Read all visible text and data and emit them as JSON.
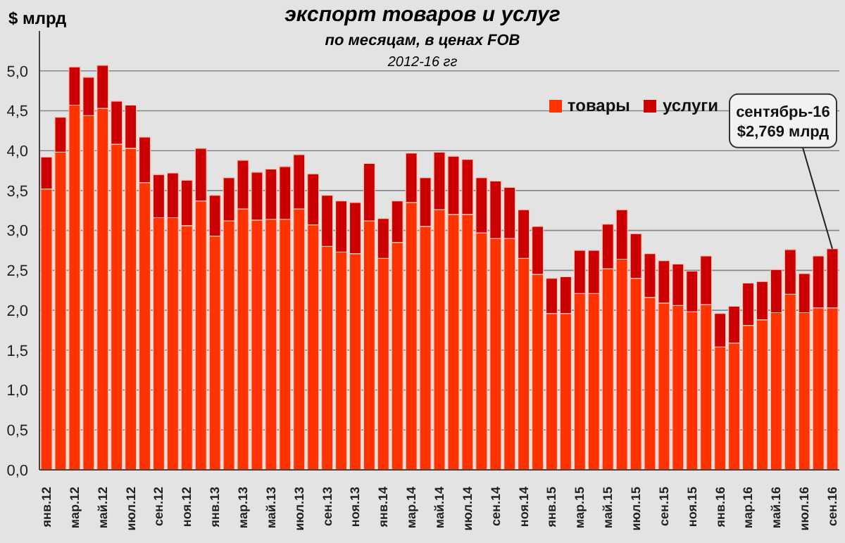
{
  "chart_data": {
    "type": "bar",
    "stacked": true,
    "title": "экспорт товаров и услуг",
    "subtitle": "по месяцам, в ценах FOB",
    "ylabel": "$ млрд",
    "annotations": [
      "2012-16 гг",
      {
        "text": "сентябрь-16\n$2,769 млрд",
        "x": "сен.16",
        "y": 2.769
      }
    ],
    "categories": [
      "янв.12",
      null,
      "мар.12",
      null,
      "май.12",
      null,
      "июл.12",
      null,
      "сен.12",
      null,
      "ноя.12",
      null,
      "янв.13",
      null,
      "мар.13",
      null,
      "май.13",
      null,
      "июл.13",
      null,
      "сен.13",
      null,
      "ноя.13",
      null,
      "янв.14",
      null,
      "мар.14",
      null,
      "май.14",
      null,
      "июл.14",
      null,
      "сен.14",
      null,
      "ноя.14",
      null,
      "янв.15",
      null,
      "мар.15",
      null,
      "май.15",
      null,
      "июл.15",
      null,
      "сен.15",
      null,
      "ноя.15",
      null,
      "янв.16",
      null,
      "мар.16",
      null,
      "май.16",
      null,
      "июл.16",
      null,
      "сен.16"
    ],
    "series": [
      {
        "name": "товары",
        "color": "#ff3300",
        "values": [
          3.52,
          3.98,
          4.57,
          4.44,
          4.53,
          4.08,
          4.03,
          3.6,
          3.16,
          3.16,
          3.06,
          3.37,
          2.93,
          3.12,
          3.27,
          3.13,
          3.14,
          3.14,
          3.27,
          3.07,
          2.8,
          2.73,
          2.71,
          3.12,
          2.65,
          2.85,
          3.35,
          3.05,
          3.26,
          3.2,
          3.2,
          2.97,
          2.9,
          2.9,
          2.65,
          2.45,
          1.96,
          1.96,
          2.21,
          2.21,
          2.52,
          2.64,
          2.4,
          2.16,
          2.09,
          2.06,
          1.98,
          2.07,
          1.54,
          1.59,
          1.81,
          1.88,
          1.97,
          2.2,
          1.97,
          2.03,
          2.03
        ]
      },
      {
        "name": "услуги",
        "color": "#cc0000",
        "values": [
          0.4,
          0.44,
          0.48,
          0.48,
          0.54,
          0.54,
          0.54,
          0.57,
          0.54,
          0.56,
          0.57,
          0.66,
          0.51,
          0.54,
          0.61,
          0.6,
          0.63,
          0.66,
          0.68,
          0.64,
          0.64,
          0.64,
          0.64,
          0.72,
          0.5,
          0.52,
          0.62,
          0.61,
          0.72,
          0.73,
          0.69,
          0.69,
          0.72,
          0.64,
          0.61,
          0.6,
          0.44,
          0.46,
          0.54,
          0.54,
          0.56,
          0.62,
          0.56,
          0.55,
          0.53,
          0.52,
          0.51,
          0.61,
          0.42,
          0.46,
          0.53,
          0.48,
          0.54,
          0.56,
          0.49,
          0.65,
          0.74
        ]
      }
    ],
    "ylim": [
      0,
      5.5
    ],
    "yticks": [
      {
        "value": 0,
        "label": "0,0"
      },
      {
        "value": 0.5,
        "label": "0,5"
      },
      {
        "value": 1,
        "label": "1,0"
      },
      {
        "value": 1.5,
        "label": "1,5"
      },
      {
        "value": 2,
        "label": "2,0"
      },
      {
        "value": 2.5,
        "label": "2,5"
      },
      {
        "value": 3,
        "label": "3,0"
      },
      {
        "value": 3.5,
        "label": "3,5"
      },
      {
        "value": 4,
        "label": "4,0"
      },
      {
        "value": 4.5,
        "label": "4,5"
      },
      {
        "value": 5,
        "label": "5,0"
      }
    ],
    "grid": "y",
    "legend": "top right"
  }
}
